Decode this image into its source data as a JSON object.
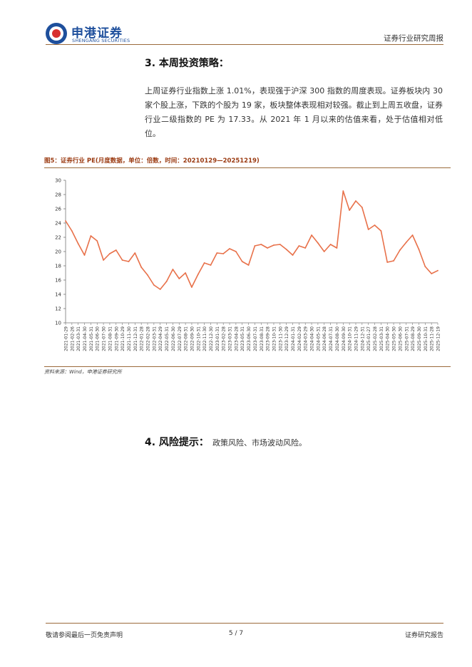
{
  "header": {
    "logo_cn": "申港证券",
    "logo_en": "SHENGANG SECURITIES",
    "report_type": "证券行业研究周报",
    "brand_color": "#1e4f9c",
    "rule_color": "#9b6a3b"
  },
  "section3": {
    "heading": "3. 本周投资策略：",
    "paragraph": "上周证券行业指数上涨 1.01%，表现强于沪深 300 指数的周度表现。证券板块内 30 家个股上涨，下跌的个股为 19 家，板块整体表现相对较强。截止到上周五收盘，证券行业二级指数的 PE 为 17.33。从 2021 年 1 月以来的估值来看，处于估值相对低位。"
  },
  "figure": {
    "title": "图5：证券行业 PE(月度数据，单位：倍数，时间：20210129—20251219)",
    "source": "资料来源：Wind，申港证券研究所"
  },
  "chart_data": {
    "type": "line",
    "title": "",
    "xlabel": "",
    "ylabel": "",
    "ylim": [
      10,
      30
    ],
    "yticks": [
      10,
      12,
      14,
      16,
      18,
      20,
      22,
      24,
      26,
      28,
      30
    ],
    "grid": false,
    "line_color": "#e8714a",
    "series": [
      {
        "x": [
          "2021-01-29",
          "2021-02-26",
          "2021-03-31",
          "2021-04-30",
          "2021-05-31",
          "2021-06-30",
          "2021-07-30",
          "2021-08-31",
          "2021-09-30",
          "2021-10-29",
          "2021-11-30",
          "2021-12-31",
          "2022-01-28",
          "2022-02-28",
          "2022-03-31",
          "2022-04-29",
          "2022-05-31",
          "2022-06-30",
          "2022-07-29",
          "2022-08-31",
          "2022-09-30",
          "2022-10-31",
          "2022-11-30",
          "2022-12-30",
          "2023-01-31",
          "2023-02-28",
          "2023-03-31",
          "2023-04-28",
          "2023-05-31",
          "2023-06-30",
          "2023-07-31",
          "2023-08-31",
          "2023-09-28",
          "2023-10-31",
          "2023-11-30",
          "2023-12-29",
          "2024-01-31",
          "2024-02-29",
          "2024-03-29",
          "2024-04-30",
          "2024-05-31",
          "2024-06-28",
          "2024-07-31",
          "2024-08-30",
          "2024-09-30",
          "2024-10-31",
          "2024-11-29",
          "2024-12-31",
          "2025-01-27",
          "2025-02-28",
          "2025-03-31",
          "2025-04-30",
          "2025-05-30",
          "2025-06-30",
          "2025-07-31",
          "2025-08-29",
          "2025-09-30",
          "2025-10-31",
          "2025-11-28",
          "2025-12-19"
        ],
        "values": [
          24.3,
          22.9,
          21.1,
          19.5,
          22.2,
          21.5,
          18.8,
          19.7,
          20.2,
          18.8,
          18.6,
          19.8,
          17.8,
          16.7,
          15.3,
          14.7,
          15.8,
          17.5,
          16.2,
          17.0,
          15.0,
          16.8,
          18.4,
          18.1,
          19.8,
          19.7,
          20.4,
          20.0,
          18.6,
          18.1,
          20.8,
          21.0,
          20.5,
          20.9,
          21.0,
          20.3,
          19.5,
          20.8,
          20.5,
          22.3,
          21.2,
          20.0,
          21.0,
          20.5,
          28.5,
          25.8,
          27.1,
          26.2,
          23.1,
          23.7,
          22.9,
          18.5,
          18.7,
          20.2,
          21.3,
          22.3,
          20.3,
          17.9,
          16.9,
          17.33
        ]
      }
    ]
  },
  "section4": {
    "heading": "4. 风险提示：",
    "text": "政策风险、市场波动风险。"
  },
  "footer": {
    "left": "敬请参阅最后一页免责声明",
    "page": "5 / 7",
    "right": "证券研究报告"
  }
}
